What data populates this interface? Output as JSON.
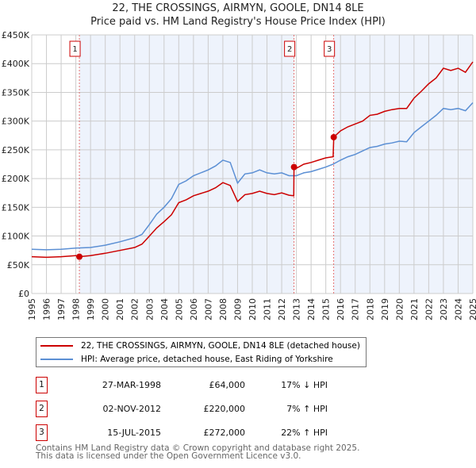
{
  "title_line1": "22, THE CROSSINGS, AIRMYN, GOOLE, DN14 8LE",
  "title_line2": "Price paid vs. HM Land Registry's House Price Index (HPI)",
  "chart_data": {
    "type": "line",
    "title": "22, THE CROSSINGS, AIRMYN, GOOLE, DN14 8LE - Price paid vs. HM Land Registry's House Price Index (HPI)",
    "xlabel": "",
    "ylabel": "",
    "xlim": [
      1995,
      2025
    ],
    "ylim": [
      0,
      450000
    ],
    "grid": true,
    "y_ticks": [
      "£0",
      "£50K",
      "£100K",
      "£150K",
      "£200K",
      "£250K",
      "£300K",
      "£350K",
      "£400K",
      "£450K"
    ],
    "x_ticks": [
      "1995",
      "1996",
      "1997",
      "1998",
      "1999",
      "2000",
      "2001",
      "2002",
      "2003",
      "2004",
      "2005",
      "2006",
      "2007",
      "2008",
      "2009",
      "2010",
      "2011",
      "2012",
      "2013",
      "2014",
      "2015",
      "2016",
      "2017",
      "2018",
      "2019",
      "2020",
      "2021",
      "2022",
      "2023",
      "2024",
      "2025"
    ],
    "series": [
      {
        "name": "22, THE CROSSINGS, AIRMYN, GOOLE, DN14 8LE (detached house)",
        "color": "#cc0000",
        "x": [
          1995,
          1996,
          1997,
          1998,
          1998.24,
          1999,
          2000,
          2001,
          2002,
          2002.5,
          2003,
          2003.5,
          2004,
          2004.5,
          2005,
          2005.5,
          2006,
          2007,
          2007.5,
          2008,
          2008.5,
          2009,
          2009.5,
          2010,
          2010.5,
          2011,
          2011.5,
          2012,
          2012.5,
          2012.82,
          2012.84,
          2013,
          2013.5,
          2014,
          2014.5,
          2015,
          2015.5,
          2015.54,
          2016,
          2016.5,
          2017,
          2017.5,
          2018,
          2018.5,
          2019,
          2019.5,
          2020,
          2020.5,
          2021,
          2021.5,
          2022,
          2022.5,
          2023,
          2023.5,
          2024,
          2024.5,
          2025
        ],
        "y": [
          64000,
          63000,
          64000,
          66000,
          64000,
          66000,
          70000,
          75000,
          80000,
          86000,
          100000,
          114000,
          125000,
          137000,
          158000,
          163000,
          170000,
          178000,
          184000,
          193000,
          188000,
          160000,
          172000,
          174000,
          178000,
          174000,
          172000,
          175000,
          171000,
          170000,
          220000,
          218000,
          225000,
          228000,
          232000,
          236000,
          238000,
          272000,
          283000,
          290000,
          295000,
          300000,
          310000,
          312000,
          317000,
          320000,
          322000,
          322000,
          340000,
          352000,
          365000,
          375000,
          392000,
          388000,
          392000,
          385000,
          403000
        ]
      },
      {
        "name": "HPI: Average price, detached house, East Riding of Yorkshire",
        "color": "#5b8fd4",
        "x": [
          1995,
          1996,
          1997,
          1998,
          1999,
          2000,
          2001,
          2002,
          2002.5,
          2003,
          2003.5,
          2004,
          2004.5,
          2005,
          2005.5,
          2006,
          2007,
          2007.5,
          2008,
          2008.5,
          2009,
          2009.5,
          2010,
          2010.5,
          2011,
          2011.5,
          2012,
          2012.5,
          2013,
          2013.5,
          2014,
          2014.5,
          2015,
          2015.5,
          2016,
          2016.5,
          2017,
          2017.5,
          2018,
          2018.5,
          2019,
          2019.5,
          2020,
          2020.5,
          2021,
          2021.5,
          2022,
          2022.5,
          2023,
          2023.5,
          2024,
          2024.5,
          2025
        ],
        "y": [
          77000,
          76000,
          77000,
          79000,
          80000,
          84000,
          90000,
          97000,
          103000,
          120000,
          138000,
          150000,
          165000,
          190000,
          196000,
          205000,
          215000,
          222000,
          232000,
          228000,
          192000,
          208000,
          210000,
          215000,
          210000,
          208000,
          210000,
          205000,
          205000,
          210000,
          212000,
          216000,
          220000,
          225000,
          232000,
          238000,
          242000,
          248000,
          254000,
          256000,
          260000,
          262000,
          265000,
          264000,
          280000,
          290000,
          300000,
          310000,
          322000,
          320000,
          322000,
          318000,
          332000
        ]
      }
    ],
    "sales": [
      {
        "label": "1",
        "x": 1998.24,
        "y": 64000
      },
      {
        "label": "2",
        "x": 2012.84,
        "y": 220000
      },
      {
        "label": "3",
        "x": 2015.54,
        "y": 272000
      }
    ]
  },
  "legend": {
    "property": "22, THE CROSSINGS, AIRMYN, GOOLE, DN14 8LE (detached house)",
    "hpi": "HPI: Average price, detached house, East Riding of Yorkshire"
  },
  "transactions": [
    {
      "num": "1",
      "date": "27-MAR-1998",
      "price": "£64,000",
      "hpi": "17% ↓ HPI"
    },
    {
      "num": "2",
      "date": "02-NOV-2012",
      "price": "£220,000",
      "hpi": "7% ↑ HPI"
    },
    {
      "num": "3",
      "date": "15-JUL-2015",
      "price": "£272,000",
      "hpi": "22% ↑ HPI"
    }
  ],
  "footer1": "Contains HM Land Registry data © Crown copyright and database right 2025.",
  "footer2": "This data is licensed under the Open Government Licence v3.0."
}
